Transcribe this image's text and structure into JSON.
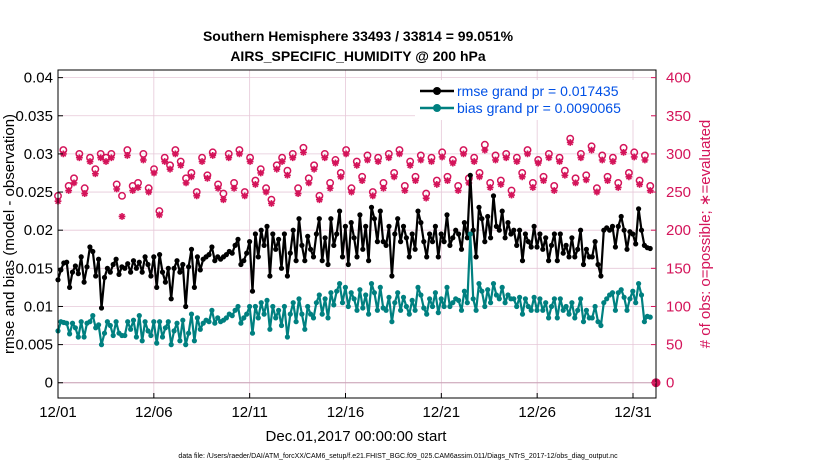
{
  "chart_data": {
    "type": "line",
    "title": "Southern Hemisphere 33493 / 33814 = 99.051%",
    "subtitle": "AIRS_SPECIFIC_HUMIDITY @ 200 hPa",
    "xlabel": "Dec.01,2017 00:00:00 start",
    "ylabel_left": "rmse and bias (model - observation)",
    "ylabel_right": "# of obs: o=possible; ∗=evaluated",
    "x_ticks": [
      "12/01",
      "12/06",
      "12/11",
      "12/16",
      "12/21",
      "12/26",
      "12/31"
    ],
    "x_tick_values": [
      1,
      6,
      11,
      16,
      21,
      26,
      31
    ],
    "xlim": [
      1,
      32.2
    ],
    "ylim_left": [
      -0.002,
      0.041
    ],
    "ylim_right": [
      -20,
      410
    ],
    "y_left_ticks": [
      "0",
      "0.005",
      "0.01",
      "0.015",
      "0.02",
      "0.025",
      "0.03",
      "0.035",
      "0.04"
    ],
    "y_left_tick_values": [
      0,
      0.005,
      0.01,
      0.015,
      0.02,
      0.025,
      0.03,
      0.035,
      0.04
    ],
    "y_right_ticks": [
      "0",
      "50",
      "100",
      "150",
      "200",
      "250",
      "300",
      "350",
      "400"
    ],
    "y_right_tick_values": [
      0,
      50,
      100,
      150,
      200,
      250,
      300,
      350,
      400
    ],
    "colors": {
      "rmse": "#000000",
      "bias": "#008080",
      "counts": "#d4145a",
      "legend_text": "#0050e6",
      "grid": "#e6c8d8"
    },
    "series": [
      {
        "name": "rmse grand pr = 0.017435",
        "color": "#000000",
        "values": [
          0.0135,
          0.0148,
          0.0157,
          0.0158,
          0.0125,
          0.0145,
          0.0153,
          0.0143,
          0.0165,
          0.0132,
          0.0152,
          0.0178,
          0.0172,
          0.014,
          0.0162,
          0.0098,
          0.0138,
          0.015,
          0.0145,
          0.0155,
          0.0162,
          0.0142,
          0.0152,
          0.015,
          0.0156,
          0.0145,
          0.016,
          0.015,
          0.0158,
          0.0145,
          0.0165,
          0.0155,
          0.014,
          0.0165,
          0.0125,
          0.0168,
          0.0145,
          0.0132,
          0.015,
          0.011,
          0.015,
          0.016,
          0.0145,
          0.0155,
          0.01,
          0.0152,
          0.0175,
          0.0125,
          0.0165,
          0.0148,
          0.0162,
          0.0165,
          0.0168,
          0.0178,
          0.016,
          0.0165,
          0.0162,
          0.0165,
          0.0168,
          0.0172,
          0.017,
          0.018,
          0.0188,
          0.0155,
          0.016,
          0.017,
          0.0185,
          0.012,
          0.0195,
          0.0165,
          0.02,
          0.018,
          0.0205,
          0.014,
          0.0195,
          0.0175,
          0.0188,
          0.015,
          0.0195,
          0.014,
          0.017,
          0.02,
          0.016,
          0.0215,
          0.018,
          0.016,
          0.0192,
          0.0175,
          0.0165,
          0.0195,
          0.0215,
          0.016,
          0.019,
          0.0155,
          0.0215,
          0.018,
          0.0195,
          0.0225,
          0.0165,
          0.0205,
          0.0155,
          0.021,
          0.019,
          0.0165,
          0.022,
          0.0175,
          0.0205,
          0.016,
          0.023,
          0.0215,
          0.0185,
          0.0225,
          0.0185,
          0.018,
          0.0205,
          0.014,
          0.0195,
          0.0215,
          0.0185,
          0.0205,
          0.019,
          0.0165,
          0.0195,
          0.0175,
          0.0225,
          0.021,
          0.0185,
          0.0165,
          0.0195,
          0.0185,
          0.0205,
          0.0165,
          0.0195,
          0.0185,
          0.022,
          0.018,
          0.019,
          0.02,
          0.0195,
          0.0175,
          0.021,
          0.019,
          0.0272,
          0.02,
          0.0165,
          0.023,
          0.0215,
          0.0185,
          0.0218,
          0.019,
          0.0245,
          0.0205,
          0.02,
          0.0225,
          0.019,
          0.021,
          0.0195,
          0.02,
          0.018,
          0.02,
          0.016,
          0.0195,
          0.0185,
          0.0178,
          0.0205,
          0.0178,
          0.0195,
          0.0175,
          0.019,
          0.016,
          0.018,
          0.0195,
          0.016,
          0.0195,
          0.017,
          0.018,
          0.0165,
          0.019,
          0.0165,
          0.0175,
          0.02,
          0.0155,
          0.0175,
          0.0165,
          0.0165,
          0.0185,
          0.0155,
          0.014,
          0.02,
          0.0203,
          0.02,
          0.0205,
          0.0178,
          0.0205,
          0.0218,
          0.02,
          0.0175,
          0.0198,
          0.0195,
          0.0182,
          0.0228,
          0.02,
          0.018,
          0.0177,
          0.0176
        ]
      },
      {
        "name": "bias grand pr = 0.0090065",
        "color": "#008080",
        "values": [
          0.0068,
          0.008,
          0.0079,
          0.0078,
          0.0064,
          0.0078,
          0.0072,
          0.006,
          0.008,
          0.006,
          0.0078,
          0.008,
          0.0088,
          0.0072,
          0.0076,
          0.005,
          0.0065,
          0.008,
          0.0075,
          0.0062,
          0.008,
          0.0065,
          0.0062,
          0.0062,
          0.008,
          0.007,
          0.0082,
          0.006,
          0.0088,
          0.0055,
          0.008,
          0.0068,
          0.0062,
          0.008,
          0.0052,
          0.008,
          0.006,
          0.0072,
          0.008,
          0.005,
          0.0068,
          0.0078,
          0.0055,
          0.0082,
          0.005,
          0.0065,
          0.009,
          0.0055,
          0.0085,
          0.007,
          0.0078,
          0.0082,
          0.008,
          0.0095,
          0.0078,
          0.0085,
          0.008,
          0.0082,
          0.0085,
          0.009,
          0.0088,
          0.0095,
          0.01,
          0.0078,
          0.0085,
          0.009,
          0.01,
          0.0065,
          0.01,
          0.0085,
          0.0105,
          0.009,
          0.0108,
          0.007,
          0.01,
          0.0085,
          0.0095,
          0.0075,
          0.01,
          0.006,
          0.009,
          0.0105,
          0.008,
          0.011,
          0.009,
          0.007,
          0.01,
          0.009,
          0.0085,
          0.0105,
          0.0115,
          0.009,
          0.011,
          0.0085,
          0.0118,
          0.0102,
          0.012,
          0.013,
          0.0105,
          0.0125,
          0.01,
          0.0118,
          0.011,
          0.0095,
          0.0122,
          0.0098,
          0.0115,
          0.009,
          0.013,
          0.0118,
          0.0095,
          0.0125,
          0.0098,
          0.0095,
          0.0112,
          0.008,
          0.0105,
          0.0118,
          0.0095,
          0.0112,
          0.01,
          0.009,
          0.0108,
          0.0095,
          0.0125,
          0.0115,
          0.0098,
          0.009,
          0.011,
          0.01,
          0.0118,
          0.0092,
          0.011,
          0.01,
          0.0125,
          0.01,
          0.0105,
          0.011,
          0.0108,
          0.0095,
          0.012,
          0.0105,
          0.0195,
          0.011,
          0.0095,
          0.013,
          0.012,
          0.01,
          0.0122,
          0.0105,
          0.013,
          0.0115,
          0.011,
          0.0125,
          0.0105,
          0.0115,
          0.011,
          0.011,
          0.01,
          0.0112,
          0.009,
          0.011,
          0.01,
          0.0095,
          0.0112,
          0.0095,
          0.011,
          0.0095,
          0.0105,
          0.0085,
          0.01,
          0.011,
          0.0085,
          0.011,
          0.0095,
          0.01,
          0.009,
          0.0105,
          0.0085,
          0.0095,
          0.011,
          0.008,
          0.0095,
          0.0085,
          0.0085,
          0.01,
          0.008,
          0.0075,
          0.0105,
          0.011,
          0.0115,
          0.0118,
          0.0095,
          0.0118,
          0.0122,
          0.0112,
          0.0095,
          0.011,
          0.012,
          0.0105,
          0.013,
          0.0115,
          0.008,
          0.0087,
          0.0086
        ]
      }
    ],
    "counts_possible": [
      245,
      305,
      258,
      268,
      300,
      255,
      295,
      280,
      300,
      295,
      300,
      260,
      245,
      305,
      258,
      262,
      300,
      255,
      280,
      225,
      295,
      285,
      305,
      290,
      268,
      275,
      250,
      295,
      272,
      302,
      260,
      248,
      300,
      262,
      305,
      250,
      295,
      265,
      280,
      255,
      240,
      285,
      295,
      278,
      300,
      255,
      308,
      268,
      285,
      245,
      300,
      262,
      292,
      275,
      305,
      255,
      290,
      270,
      298,
      250,
      295,
      262,
      300,
      275,
      305,
      258,
      290,
      270,
      298,
      248,
      295,
      265,
      302,
      270,
      292,
      258,
      305,
      268,
      295,
      275,
      312,
      262,
      298,
      265,
      300,
      252,
      295,
      275,
      305,
      262,
      292,
      270,
      300,
      258,
      295,
      278,
      320,
      268,
      300,
      272,
      310,
      255,
      298,
      270,
      295,
      262,
      308,
      275,
      302,
      265,
      298,
      258
    ],
    "counts_evaluated": [
      238,
      300,
      252,
      262,
      295,
      248,
      290,
      274,
      295,
      290,
      295,
      254,
      218,
      298,
      252,
      256,
      292,
      250,
      275,
      220,
      290,
      280,
      300,
      285,
      262,
      270,
      245,
      290,
      268,
      298,
      255,
      240,
      295,
      255,
      300,
      245,
      290,
      260,
      275,
      250,
      235,
      280,
      290,
      272,
      295,
      248,
      302,
      262,
      280,
      240,
      295,
      255,
      288,
      270,
      300,
      250,
      285,
      265,
      292,
      245,
      290,
      255,
      295,
      270,
      300,
      252,
      285,
      265,
      292,
      242,
      290,
      260,
      296,
      265,
      288,
      252,
      300,
      262,
      290,
      270,
      305,
      256,
      292,
      260,
      295,
      246,
      290,
      270,
      300,
      256,
      288,
      265,
      295,
      252,
      290,
      272,
      315,
      262,
      295,
      266,
      305,
      250,
      292,
      265,
      290,
      256,
      302,
      270,
      296,
      260,
      292,
      252
    ],
    "counts_last": 0,
    "footnote": "data file: /Users/raeder/DAI/ATM_forcXX/CAM6_setup/f.e21.FHIST_BGC.f09_025.CAM6assim.011/Diags_NTrS_2017-12/obs_diag_output.nc"
  }
}
